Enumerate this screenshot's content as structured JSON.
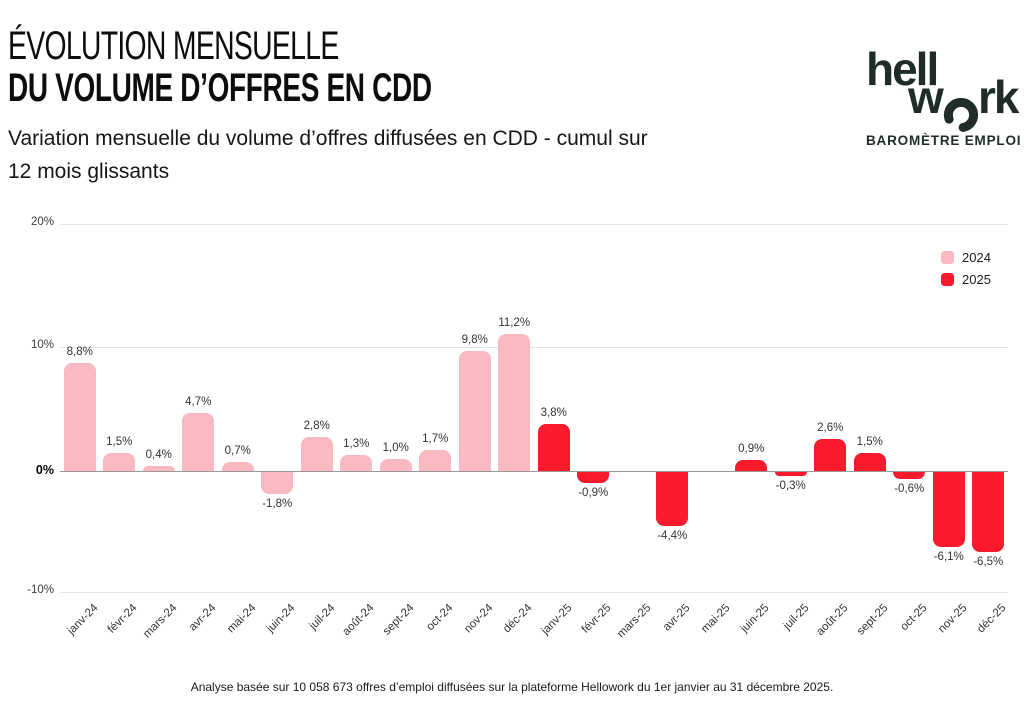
{
  "header": {
    "title_line1": "ÉVOLUTION MENSUELLE",
    "title_line2": "DU VOLUME D’OFFRES EN CDD",
    "subtitle": "Variation mensuelle du volume d’offres diffusées en CDD - cumul sur 12 mois glissants"
  },
  "logo": {
    "word_part1": "hell",
    "word_part2": "w",
    "word_part3": "rk",
    "tagline": "BAROMÈTRE EMPLOI"
  },
  "chart_data": {
    "type": "bar",
    "title": "ÉVOLUTION MENSUELLE DU VOLUME D’OFFRES EN CDD",
    "xlabel": "",
    "ylabel": "",
    "ylim": [
      -10,
      20
    ],
    "yticks": [
      "20%",
      "10%",
      "0%",
      "-10%"
    ],
    "grid": true,
    "legend_position": "top-right",
    "categories": [
      "janv-24",
      "févr-24",
      "mars-24",
      "avr-24",
      "mai-24",
      "juin-24",
      "juil-24",
      "août-24",
      "sept-24",
      "oct-24",
      "nov-24",
      "déc-24",
      "janv-25",
      "févr-25",
      "mars-25",
      "avr-25",
      "mai-25",
      "juin-25",
      "juil-25",
      "août-25",
      "sept-25",
      "oct-25",
      "nov-25",
      "déc-25"
    ],
    "series": [
      {
        "name": "2024",
        "color": "#F9B9C0",
        "values": [
          8.8,
          1.5,
          0.4,
          4.7,
          0.7,
          -1.8,
          2.8,
          1.3,
          1.0,
          1.7,
          9.8,
          11.2,
          null,
          null,
          null,
          null,
          null,
          null,
          null,
          null,
          null,
          null,
          null,
          null
        ]
      },
      {
        "name": "2025",
        "color": "#FA1A2E",
        "values": [
          null,
          null,
          null,
          null,
          null,
          null,
          null,
          null,
          null,
          null,
          null,
          null,
          3.8,
          -0.9,
          null,
          -4.4,
          null,
          0.9,
          -0.3,
          2.6,
          1.5,
          -0.6,
          -6.1,
          -6.5
        ]
      }
    ],
    "value_labels": [
      "8,8%",
      "1,5%",
      "0,4%",
      "4,7%",
      "0,7%",
      "-1,8%",
      "2,8%",
      "1,3%",
      "1,0%",
      "1,7%",
      "9,8%",
      "11,2%",
      "3,8%",
      "-0,9%",
      "",
      "-4,4%",
      "",
      "0,9%",
      "-0,3%",
      "2,6%",
      "1,5%",
      "-0,6%",
      "-6,1%",
      "-6,5%"
    ],
    "gridline_color": "#E3E3E3",
    "baseline_color": "#999999"
  },
  "footer": {
    "note": "Analyse basée sur 10 058 673 offres d’emploi diffusées sur la plateforme Hellowork du 1er janvier au 31 décembre 2025."
  }
}
